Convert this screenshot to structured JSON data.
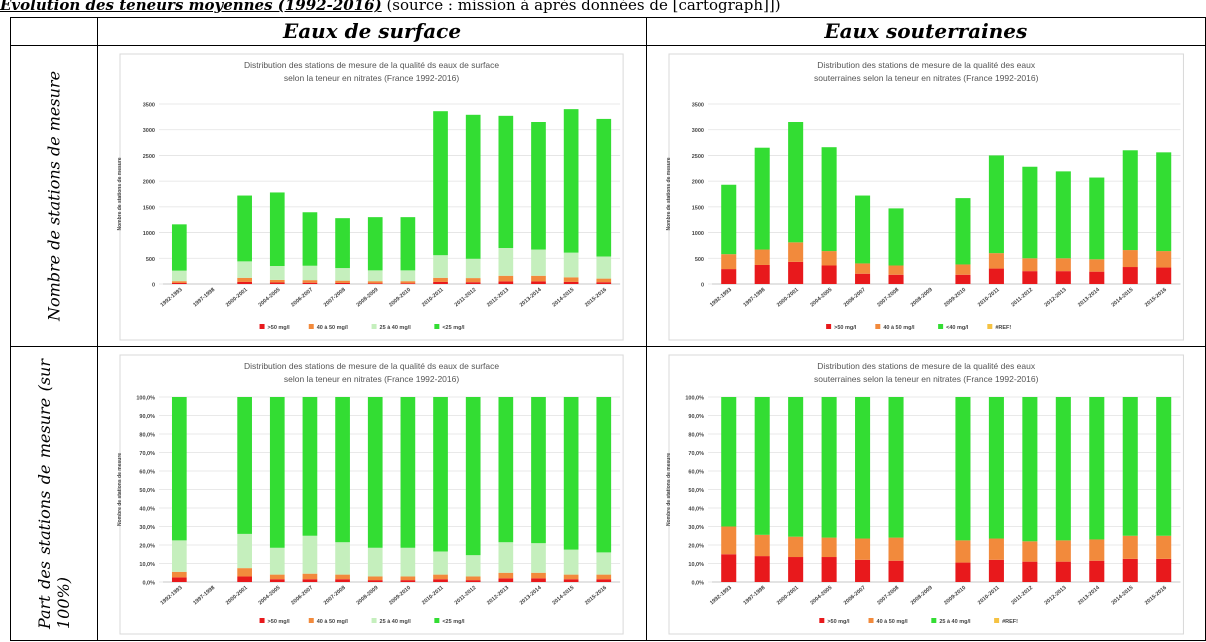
{
  "header": {
    "title": "Évolution des teneurs moyennes (1992-2016)",
    "source": " (source : mission à après données de [cartograph]])"
  },
  "columns": [
    "Eaux de surface",
    "Eaux souterraines"
  ],
  "rows": [
    "Nombre de stations de mesure",
    "Part des stations de mesure (sur 100%)"
  ],
  "chart_data": [
    {
      "type": "bar",
      "stacked": true,
      "title": "Distribution des stations de mesure de la qualité ds eaux de surface selon la teneur en nitrates (France 1992-2016)",
      "title_lines": [
        "Distribution des stations de mesure de la qualité ds eaux de surface",
        "selon la teneur en nitrates (France 1992-2016)"
      ],
      "xlabel": "",
      "ylabel": "Nombre de stations de mesure",
      "ylim": [
        0,
        3500
      ],
      "yticks": [
        0,
        500,
        1000,
        1500,
        2000,
        2500,
        3000,
        3500
      ],
      "ytick_labels": [
        "0",
        "500",
        "1000",
        "1500",
        "2000",
        "2500",
        "3000",
        "3500"
      ],
      "grid": true,
      "legend_position": "bottom",
      "categories": [
        "1992-1993",
        "1997-1998",
        "2000-2001",
        "2004-2005",
        "2006-2007",
        "2007-2008",
        "2008-2009",
        "2009-2010",
        "2010-2011",
        "2011-2012",
        "2012-2013",
        "2013-2014",
        "2014-2015",
        "2015-2016"
      ],
      "series": [
        {
          "name": ">50 mg/l",
          "color": "#e8191c",
          "values": [
            20,
            0,
            40,
            30,
            25,
            20,
            15,
            15,
            40,
            35,
            50,
            50,
            40,
            35
          ]
        },
        {
          "name": "40 à 50 mg/l",
          "color": "#f28a3c",
          "values": [
            35,
            0,
            80,
            50,
            50,
            45,
            40,
            40,
            80,
            80,
            110,
            110,
            90,
            70
          ]
        },
        {
          "name": "25 à 40 mg/l",
          "color": "#c5efbd",
          "values": [
            205,
            0,
            320,
            270,
            280,
            245,
            210,
            210,
            440,
            375,
            540,
            510,
            480,
            430
          ]
        },
        {
          "name": "<25 mg/l",
          "color": "#33dd33",
          "values": [
            900,
            0,
            1280,
            1430,
            1040,
            970,
            1035,
            1035,
            2800,
            2800,
            2570,
            2480,
            2790,
            2675
          ]
        }
      ]
    },
    {
      "type": "bar",
      "stacked": true,
      "title": "Distribution des stations de mesure de la qualité des eaux souterraines selon la teneur en nitrates (France 1992-2016)",
      "title_lines": [
        "Distribution des stations de mesure de la qualité des eaux",
        "souterraines selon la teneur en nitrates (France 1992-2016)"
      ],
      "xlabel": "",
      "ylabel": "Nombre de stations de mesure",
      "ylim": [
        0,
        3500
      ],
      "yticks": [
        0,
        500,
        1000,
        1500,
        2000,
        2500,
        3000,
        3500
      ],
      "ytick_labels": [
        "0",
        "500",
        "1000",
        "1500",
        "2000",
        "2500",
        "3000",
        "3500"
      ],
      "grid": true,
      "legend_position": "bottom",
      "categories": [
        "1992-1993",
        "1997-1998",
        "2000-2001",
        "2004-2005",
        "2006-2007",
        "2007-2008",
        "2008-2009",
        "2009-2010",
        "2010-2011",
        "2011-2012",
        "2012-2013",
        "2013-2014",
        "2014-2015",
        "2015-2016"
      ],
      "series": [
        {
          "name": ">50 mg/l",
          "color": "#e8191c",
          "values": [
            290,
            370,
            430,
            360,
            200,
            180,
            0,
            180,
            300,
            250,
            250,
            240,
            330,
            320
          ]
        },
        {
          "name": "40 à 50 mg/l",
          "color": "#f28a3c",
          "values": [
            290,
            300,
            380,
            280,
            200,
            180,
            0,
            200,
            300,
            250,
            250,
            240,
            330,
            320
          ]
        },
        {
          "name": "<40 mg/l",
          "color": "#33dd33",
          "values": [
            1350,
            1980,
            2340,
            2020,
            1320,
            1110,
            0,
            1290,
            1900,
            1780,
            1690,
            1590,
            1940,
            1920
          ]
        },
        {
          "name": "#REF!",
          "color": "#f5c242",
          "values": [
            0,
            0,
            0,
            0,
            0,
            0,
            0,
            0,
            0,
            0,
            0,
            0,
            0,
            0
          ]
        }
      ]
    },
    {
      "type": "bar",
      "stacked": true,
      "percent": true,
      "title": "Distribution des stations de mesure de la qualité ds eaux de surface selon la teneur en nitrates (France 1992-2016)",
      "title_lines": [
        "Distribution des stations de mesure de la qualité ds eaux de surface",
        "selon la teneur en nitrates (France 1992-2016)"
      ],
      "xlabel": "",
      "ylabel": "Nombre de stations de mesure",
      "ylim": [
        0,
        100
      ],
      "yticks": [
        0,
        10,
        20,
        30,
        40,
        50,
        60,
        70,
        80,
        90,
        100
      ],
      "ytick_labels": [
        "0,0%",
        "10,0%",
        "20,0%",
        "30,0%",
        "40,0%",
        "50,0%",
        "60,0%",
        "70,0%",
        "80,0%",
        "90,0%",
        "100,0%"
      ],
      "grid": true,
      "legend_position": "bottom",
      "categories": [
        "1992-1993",
        "1997-1998",
        "2000-2001",
        "2004-2005",
        "2006-2007",
        "2007-2008",
        "2008-2009",
        "2009-2010",
        "2010-2011",
        "2011-2012",
        "2012-2013",
        "2013-2014",
        "2014-2015",
        "2015-2016"
      ],
      "series": [
        {
          "name": ">50 mg/l",
          "color": "#e8191c",
          "values": [
            2.5,
            0,
            3,
            1.5,
            1.5,
            1.5,
            1,
            1,
            1.5,
            1,
            2,
            2,
            1.5,
            1.5
          ]
        },
        {
          "name": "40 à 50 mg/l",
          "color": "#f28a3c",
          "values": [
            3,
            0,
            4.5,
            2.5,
            3,
            2.5,
            2,
            2,
            2.5,
            2,
            3,
            3,
            2.5,
            2.5
          ]
        },
        {
          "name": "25 à 40 mg/l",
          "color": "#c5efbd",
          "values": [
            17,
            0,
            18.5,
            14.5,
            20.5,
            17.5,
            15.5,
            15.5,
            12.5,
            11.5,
            16.5,
            16,
            13.5,
            12
          ]
        },
        {
          "name": "<25 mg/l",
          "color": "#33dd33",
          "values": [
            77.5,
            0,
            74,
            81.5,
            75,
            78.5,
            81.5,
            81.5,
            83.5,
            85.5,
            78.5,
            79,
            82.5,
            84
          ]
        }
      ]
    },
    {
      "type": "bar",
      "stacked": true,
      "percent": true,
      "title": "Distribution des stations de mesure de la qualité des eaux souterraines selon la teneur en nitrates (France 1992-2016)",
      "title_lines": [
        "Distribution des stations de mesure de la qualité des eaux",
        "souterraines selon la teneur en nitrates (France 1992-2016)"
      ],
      "xlabel": "",
      "ylabel": "Nombre de stations de mesure",
      "ylim": [
        0,
        100
      ],
      "yticks": [
        0,
        10,
        20,
        30,
        40,
        50,
        60,
        70,
        80,
        90,
        100
      ],
      "ytick_labels": [
        "0,0%",
        "10,0%",
        "20,0%",
        "30,0%",
        "40,0%",
        "50,0%",
        "60,0%",
        "70,0%",
        "80,0%",
        "90,0%",
        "100,0%"
      ],
      "grid": true,
      "legend_position": "bottom",
      "categories": [
        "1992-1993",
        "1997-1998",
        "2000-2001",
        "2004-2005",
        "2006-2007",
        "2007-2008",
        "2008-2009",
        "2009-2010",
        "2010-2011",
        "2011-2012",
        "2012-2013",
        "2013-2014",
        "2014-2015",
        "2015-2016"
      ],
      "series": [
        {
          "name": ">50 mg/l",
          "color": "#e8191c",
          "values": [
            15,
            14,
            13.5,
            13.5,
            12,
            11.5,
            0,
            10.5,
            12,
            11,
            11,
            11.5,
            12.5,
            12.5
          ]
        },
        {
          "name": "40 à 50 mg/l",
          "color": "#f28a3c",
          "values": [
            15,
            11.5,
            11,
            10.5,
            11.5,
            12.5,
            0,
            12,
            11.5,
            11,
            11.5,
            11.5,
            12.5,
            12.5
          ]
        },
        {
          "name": "25 à 40 mg/l",
          "color": "#33dd33",
          "values": [
            70,
            74.5,
            75.5,
            76,
            76.5,
            76,
            0,
            77.5,
            76.5,
            78,
            77.5,
            77,
            75,
            75
          ]
        },
        {
          "name": "#REF!",
          "color": "#f5c242",
          "values": [
            0,
            0,
            0,
            0,
            0,
            0,
            0,
            0,
            0,
            0,
            0,
            0,
            0,
            0
          ]
        }
      ]
    }
  ]
}
